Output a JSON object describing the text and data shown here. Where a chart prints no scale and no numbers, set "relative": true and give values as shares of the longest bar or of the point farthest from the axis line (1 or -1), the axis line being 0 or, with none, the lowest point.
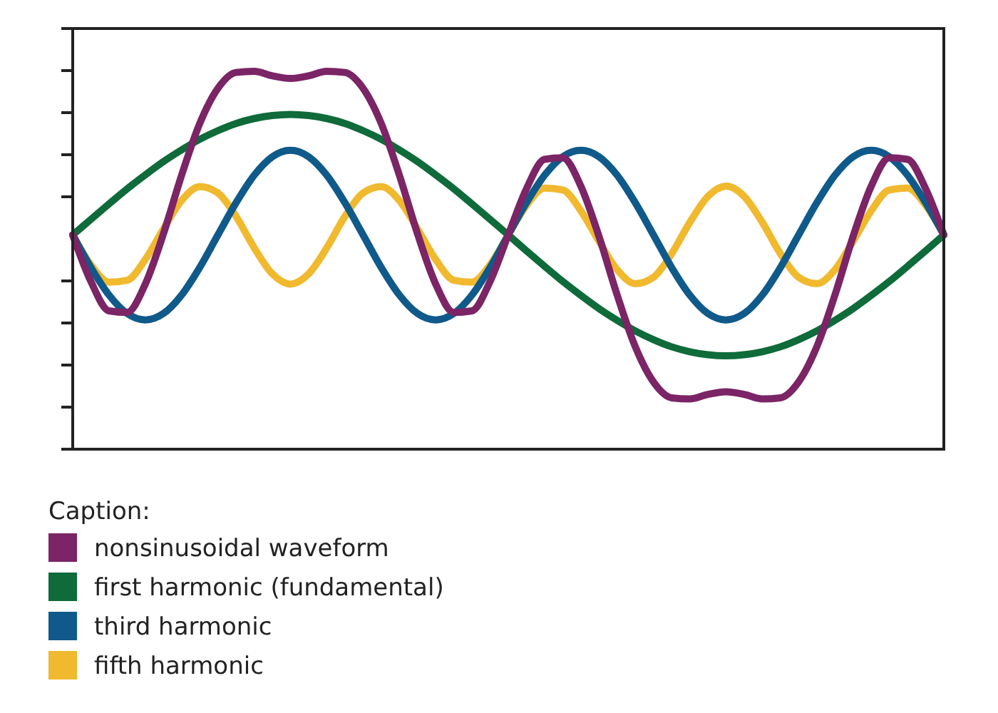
{
  "chart_data": {
    "type": "line",
    "relative": true,
    "legend": "bottom",
    "legend_title": "Caption:",
    "marker": "none",
    "line_style": "solid",
    "grid": false,
    "categories": [
      null,
      null,
      null,
      null,
      null,
      null,
      null,
      null,
      null,
      null,
      null,
      null,
      null,
      null,
      null,
      null,
      null,
      null,
      null,
      null,
      null,
      null,
      null,
      null,
      null,
      null,
      null,
      null,
      null,
      null,
      null,
      null,
      null,
      null,
      null,
      null,
      null,
      null,
      null,
      null,
      null,
      null,
      null,
      null,
      null,
      null,
      null,
      null,
      null
    ],
    "series": [
      {
        "name": "nonsinusoidal waveform",
        "color": "#7b2466",
        "values": [
          0.567,
          0.444,
          0.366,
          0.362,
          0.437,
          0.57,
          0.725,
          0.862,
          0.955,
          0.997,
          1,
          0.988,
          0.981,
          0.988,
          1,
          0.997,
          0.955,
          0.862,
          0.725,
          0.57,
          0.437,
          0.362,
          0.366,
          0.444,
          0.567,
          0.689,
          0.767,
          0.771,
          0.696,
          0.563,
          0.408,
          0.271,
          0.178,
          0.136,
          0.133,
          0.145,
          0.152,
          0.145,
          0.133,
          0.136,
          0.178,
          0.271,
          0.408,
          0.563,
          0.696,
          0.771,
          0.767,
          0.689,
          0.567
        ]
      },
      {
        "name": "first harmonic (fundamental)",
        "color": "#0f6b3a",
        "values": [
          0.567,
          0.608,
          0.649,
          0.689,
          0.726,
          0.761,
          0.792,
          0.82,
          0.843,
          0.862,
          0.875,
          0.883,
          0.886,
          0.883,
          0.875,
          0.862,
          0.843,
          0.82,
          0.792,
          0.761,
          0.726,
          0.689,
          0.649,
          0.608,
          0.567,
          0.525,
          0.484,
          0.444,
          0.407,
          0.372,
          0.341,
          0.313,
          0.29,
          0.271,
          0.258,
          0.25,
          0.247,
          0.25,
          0.258,
          0.271,
          0.29,
          0.313,
          0.341,
          0.372,
          0.407,
          0.444,
          0.484,
          0.525,
          0.567
        ]
      },
      {
        "name": "third harmonic",
        "color": "#0f5a8a",
        "values": [
          0.567,
          0.481,
          0.408,
          0.359,
          0.342,
          0.359,
          0.408,
          0.481,
          0.567,
          0.652,
          0.725,
          0.774,
          0.791,
          0.774,
          0.725,
          0.652,
          0.567,
          0.481,
          0.408,
          0.359,
          0.342,
          0.359,
          0.408,
          0.481,
          0.567,
          0.652,
          0.725,
          0.774,
          0.791,
          0.774,
          0.725,
          0.652,
          0.567,
          0.481,
          0.408,
          0.359,
          0.342,
          0.359,
          0.408,
          0.481,
          0.567,
          0.652,
          0.725,
          0.774,
          0.791,
          0.774,
          0.725,
          0.652,
          0.567
        ]
      },
      {
        "name": "fifth harmonic",
        "color": "#f0b92e",
        "values": [
          0.567,
          0.488,
          0.442,
          0.447,
          0.502,
          0.583,
          0.658,
          0.695,
          0.678,
          0.616,
          0.533,
          0.464,
          0.437,
          0.464,
          0.533,
          0.616,
          0.678,
          0.695,
          0.658,
          0.583,
          0.502,
          0.447,
          0.442,
          0.488,
          0.567,
          0.645,
          0.691,
          0.686,
          0.631,
          0.55,
          0.475,
          0.438,
          0.455,
          0.517,
          0.6,
          0.669,
          0.696,
          0.669,
          0.6,
          0.517,
          0.455,
          0.438,
          0.475,
          0.55,
          0.631,
          0.686,
          0.691,
          0.645,
          0.567
        ]
      }
    ]
  }
}
